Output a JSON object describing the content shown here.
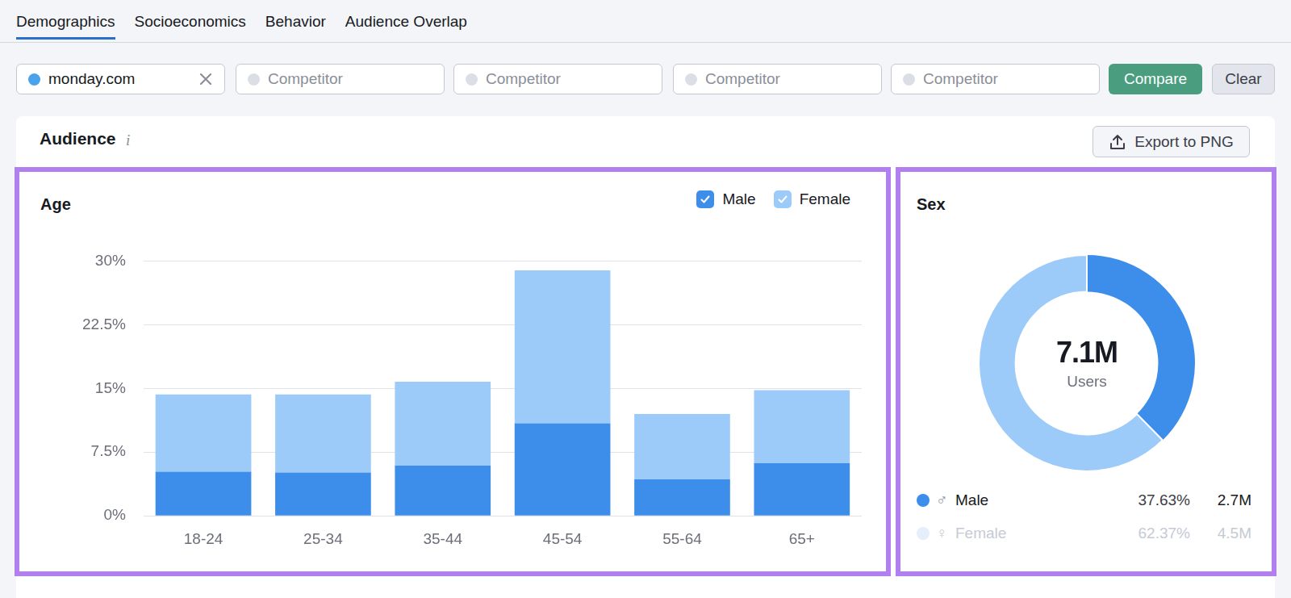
{
  "ui": {
    "tabs": [
      "Demographics",
      "Socioeconomics",
      "Behavior",
      "Audience Overlap"
    ],
    "active_tab": "Demographics",
    "domain": "monday.com",
    "competitor_placeholders": [
      "Competitor",
      "Competitor",
      "Competitor",
      "Competitor"
    ],
    "buttons": [
      "Compare",
      "Clear"
    ],
    "panel_title": "Audience",
    "info": "i",
    "export": "Export to PNG"
  },
  "chart_data": [
    {
      "type": "bar",
      "title": "Age",
      "stacked": true,
      "grid": true,
      "legend": "top-right",
      "categories": [
        "18-24",
        "25-34",
        "35-44",
        "45-54",
        "55-64",
        "65+"
      ],
      "series": [
        {
          "name": "Male",
          "color": "#3d8eeb",
          "values": [
            5.2,
            5.1,
            5.9,
            10.9,
            4.3,
            6.2
          ]
        },
        {
          "name": "Female",
          "color": "#9dcbf9",
          "values": [
            9.1,
            9.2,
            9.9,
            18.0,
            7.7,
            8.6
          ]
        }
      ],
      "ylim": [
        0,
        30
      ],
      "yticks": [
        {
          "value": 0,
          "label": "0%"
        },
        {
          "value": 7.5,
          "label": "7.5%"
        },
        {
          "value": 15,
          "label": "15%"
        },
        {
          "value": 22.5,
          "label": "22.5%"
        },
        {
          "value": 30,
          "label": "30%"
        }
      ]
    },
    {
      "type": "doughnut",
      "title": "Sex",
      "categories": [
        "Male",
        "Female"
      ],
      "symbols": [
        "♂",
        "♀"
      ],
      "values": [
        37.63,
        62.37
      ],
      "value_labels": [
        "37.63%",
        "62.37%"
      ],
      "counts": [
        "2.7M",
        "4.5M"
      ],
      "colors": [
        "#3d8eeb",
        "#9dcbf9"
      ],
      "total": "7.1M",
      "total_text": "Users"
    }
  ]
}
